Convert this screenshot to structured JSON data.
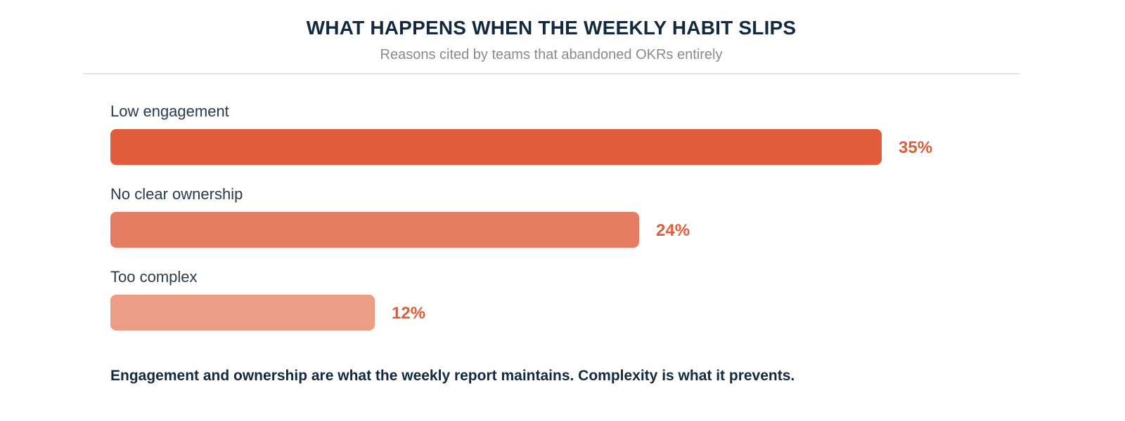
{
  "title": "WHAT HAPPENS WHEN THE WEEKLY HABIT SLIPS",
  "subtitle": "Reasons cited by teams that abandoned OKRs entirely",
  "footnote": "Engagement and ownership are what the weekly report maintains. Complexity is what it prevents.",
  "colors": {
    "title": "#13293d",
    "value_label": "#e05c3a"
  },
  "chart_data": {
    "type": "bar",
    "orientation": "horizontal",
    "categories": [
      "Low engagement",
      "No clear ownership",
      "Too complex"
    ],
    "values": [
      35,
      24,
      12
    ],
    "value_labels": [
      "35%",
      "24%",
      "12%"
    ],
    "unit": "%",
    "bar_colors": [
      "#e05c3a",
      "#e67d63",
      "#ed9c85"
    ],
    "xlim": [
      0,
      35
    ],
    "grid": false,
    "legend": "none"
  }
}
